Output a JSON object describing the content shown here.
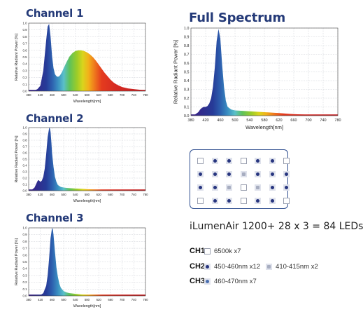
{
  "chart_data": [
    {
      "type": "area",
      "title": "Channel 1",
      "xlabel": "Wavelength[nm]",
      "ylabel": "Relative  Radiant  Power [%]",
      "xlim": [
        380,
        780
      ],
      "ylim": [
        0,
        1.0
      ],
      "grid": true,
      "x_ticks": [
        "380",
        "420",
        "460",
        "500",
        "540",
        "580",
        "620",
        "660",
        "700",
        "740",
        "780"
      ],
      "y_ticks": [
        "0.0",
        "0.1",
        "0.2",
        "0.3",
        "0.4",
        "0.5",
        "0.6",
        "0.7",
        "0.8",
        "0.9",
        "1.0"
      ],
      "x": [
        380,
        390,
        400,
        410,
        420,
        430,
        440,
        445,
        450,
        455,
        460,
        465,
        470,
        475,
        480,
        485,
        490,
        495,
        500,
        510,
        520,
        530,
        540,
        550,
        560,
        570,
        580,
        590,
        600,
        610,
        620,
        630,
        640,
        650,
        660,
        670,
        680,
        690,
        700,
        720,
        740,
        760,
        780
      ],
      "values": [
        0.0,
        0.0,
        0.01,
        0.03,
        0.08,
        0.3,
        0.75,
        0.95,
        0.99,
        0.8,
        0.52,
        0.34,
        0.25,
        0.22,
        0.21,
        0.22,
        0.25,
        0.29,
        0.34,
        0.43,
        0.51,
        0.56,
        0.59,
        0.6,
        0.6,
        0.59,
        0.57,
        0.54,
        0.5,
        0.45,
        0.39,
        0.33,
        0.27,
        0.22,
        0.17,
        0.13,
        0.1,
        0.08,
        0.06,
        0.04,
        0.03,
        0.02,
        0.01
      ]
    },
    {
      "type": "area",
      "title": "Channel 2",
      "xlabel": "Wavelength[nm]",
      "ylabel": "Relative  Radiant  Power [%]",
      "xlim": [
        380,
        780
      ],
      "ylim": [
        0,
        1.0
      ],
      "grid": true,
      "x_ticks": [
        "380",
        "420",
        "460",
        "500",
        "540",
        "580",
        "620",
        "660",
        "700",
        "740",
        "780"
      ],
      "y_ticks": [
        "0.0",
        "0.1",
        "0.2",
        "0.3",
        "0.4",
        "0.5",
        "0.6",
        "0.7",
        "0.8",
        "0.9",
        "1.0"
      ],
      "x": [
        380,
        390,
        400,
        405,
        410,
        413,
        416,
        420,
        425,
        430,
        435,
        440,
        445,
        450,
        452,
        455,
        458,
        460,
        465,
        470,
        475,
        480,
        490,
        500,
        510,
        520,
        540,
        560,
        600,
        650,
        700,
        780
      ],
      "values": [
        0.0,
        0.01,
        0.05,
        0.1,
        0.15,
        0.17,
        0.16,
        0.14,
        0.16,
        0.22,
        0.35,
        0.58,
        0.85,
        0.99,
        1.0,
        0.93,
        0.75,
        0.6,
        0.38,
        0.22,
        0.14,
        0.09,
        0.06,
        0.05,
        0.045,
        0.04,
        0.035,
        0.03,
        0.02,
        0.01,
        0.01,
        0.0
      ]
    },
    {
      "type": "area",
      "title": "Channel 3",
      "xlabel": "Wavelength[nm]",
      "ylabel": "Relative  Radiant  Power [%]",
      "xlim": [
        380,
        780
      ],
      "ylim": [
        0,
        1.0
      ],
      "grid": true,
      "x_ticks": [
        "380",
        "420",
        "460",
        "500",
        "540",
        "580",
        "620",
        "660",
        "700",
        "740",
        "780"
      ],
      "y_ticks": [
        "0.0",
        "0.1",
        "0.2",
        "0.3",
        "0.4",
        "0.5",
        "0.6",
        "0.7",
        "0.8",
        "0.9",
        "1.0"
      ],
      "x": [
        380,
        400,
        420,
        430,
        440,
        445,
        450,
        455,
        460,
        463,
        465,
        470,
        475,
        480,
        485,
        490,
        500,
        510,
        520,
        540,
        560,
        600,
        650,
        700,
        780
      ],
      "values": [
        0.0,
        0.0,
        0.01,
        0.04,
        0.15,
        0.3,
        0.55,
        0.85,
        1.0,
        0.97,
        0.9,
        0.65,
        0.42,
        0.28,
        0.18,
        0.12,
        0.07,
        0.05,
        0.04,
        0.03,
        0.02,
        0.01,
        0.0,
        0.0,
        0.0
      ]
    },
    {
      "type": "area",
      "title": "Full Spectrum",
      "xlabel": "Wavelength[nm]",
      "ylabel": "Relative  Radiant  Power [%]",
      "xlim": [
        380,
        780
      ],
      "ylim": [
        0,
        1.0
      ],
      "grid": true,
      "x_ticks": [
        "380",
        "420",
        "460",
        "500",
        "540",
        "580",
        "620",
        "660",
        "700",
        "740",
        "780"
      ],
      "y_ticks": [
        "0.0",
        "0.1",
        "0.2",
        "0.3",
        "0.4",
        "0.5",
        "0.6",
        "0.7",
        "0.8",
        "0.9",
        "1.0"
      ],
      "x": [
        380,
        390,
        400,
        405,
        410,
        415,
        420,
        425,
        430,
        435,
        440,
        445,
        450,
        455,
        460,
        465,
        470,
        475,
        480,
        490,
        500,
        520,
        540,
        560,
        580,
        600,
        620,
        650,
        700,
        780
      ],
      "values": [
        0.0,
        0.01,
        0.04,
        0.07,
        0.09,
        0.1,
        0.1,
        0.11,
        0.14,
        0.2,
        0.33,
        0.55,
        0.85,
        0.99,
        0.88,
        0.58,
        0.33,
        0.17,
        0.1,
        0.07,
        0.06,
        0.055,
        0.05,
        0.045,
        0.04,
        0.035,
        0.03,
        0.02,
        0.01,
        0.0
      ]
    }
  ],
  "led_layout": {
    "rows": [
      [
        "w",
        "b",
        "b",
        "w",
        "b",
        "b",
        "w"
      ],
      [
        "b",
        "b",
        "b",
        "s",
        "b",
        "b",
        "b"
      ],
      [
        "b",
        "b",
        "s",
        "w",
        "s",
        "b",
        "b"
      ],
      [
        "w",
        "b",
        "b",
        "w",
        "b",
        "b",
        "w"
      ]
    ]
  },
  "product": {
    "headline": "iLumenAir 1200+ 28 x 3 = 84 LEDs"
  },
  "legend": [
    {
      "channel": "CH1",
      "entries": [
        {
          "swatch": "white-square",
          "label": "6500k x7"
        }
      ]
    },
    {
      "channel": "CH2",
      "entries": [
        {
          "swatch": "blue-dot",
          "label": "450-460nm x12"
        },
        {
          "swatch": "gray-square",
          "label": "410-415nm x2"
        }
      ]
    },
    {
      "channel": "CH3",
      "entries": [
        {
          "swatch": "light-blue-dot",
          "label": "460-470nm x7"
        }
      ]
    }
  ],
  "colors": {
    "title": "#243a78",
    "panel_border": "#2e4d8f",
    "led_blue": "#27357f",
    "led_light_blue": "#4a6fb0",
    "led_gray": "#a7adc0"
  }
}
